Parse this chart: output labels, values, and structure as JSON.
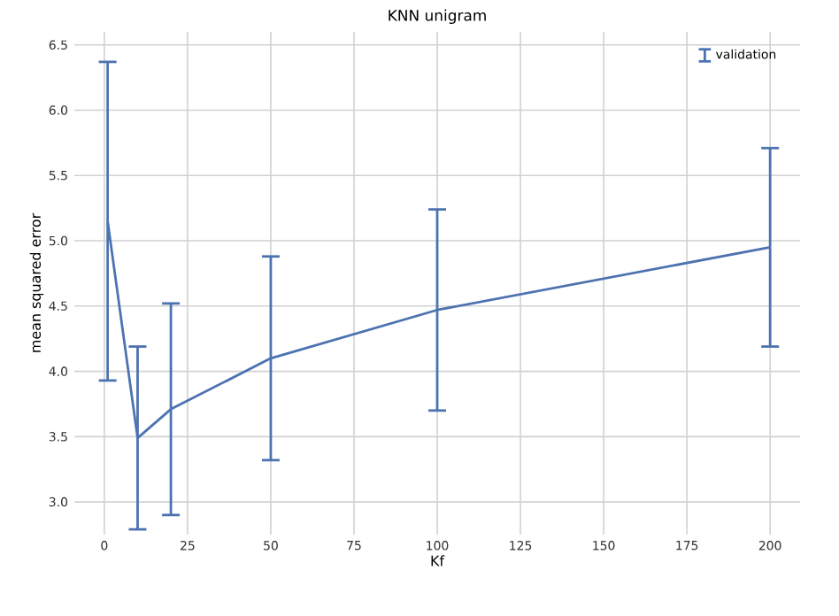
{
  "chart_data": {
    "type": "line",
    "title": "KNN unigram",
    "xlabel": "Kf",
    "ylabel": "mean squared error",
    "x": [
      1,
      10,
      20,
      50,
      100,
      200
    ],
    "series": [
      {
        "name": "validation",
        "color": "#4c72b0",
        "values": [
          5.15,
          3.49,
          3.71,
          4.1,
          4.47,
          4.95
        ],
        "errors": [
          1.22,
          0.7,
          0.81,
          0.78,
          0.77,
          0.76
        ]
      }
    ],
    "xlim": [
      -9,
      209
    ],
    "ylim": [
      2.75,
      6.6
    ],
    "xticks": [
      0,
      25,
      50,
      75,
      100,
      125,
      150,
      175,
      200
    ],
    "yticks": [
      {
        "value": 3.0,
        "label": "3.0"
      },
      {
        "value": 3.5,
        "label": "3.5"
      },
      {
        "value": 4.0,
        "label": "4.0"
      },
      {
        "value": 4.5,
        "label": "4.5"
      },
      {
        "value": 5.0,
        "label": "5.0"
      },
      {
        "value": 5.5,
        "label": "5.5"
      },
      {
        "value": 6.0,
        "label": "6.0"
      },
      {
        "value": 6.5,
        "label": "6.5"
      }
    ],
    "grid": true,
    "legend": "top right",
    "marker": "none",
    "line_style": "solid"
  }
}
